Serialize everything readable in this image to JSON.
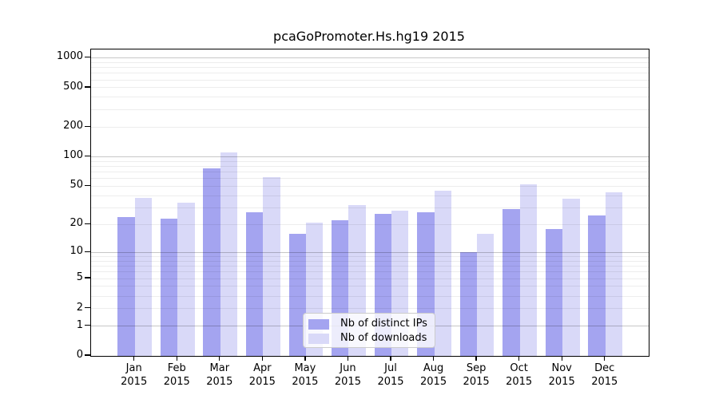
{
  "title": "pcaGoPromoter.Hs.hg19 2015",
  "chart_data": {
    "type": "bar",
    "title": "pcaGoPromoter.Hs.hg19 2015",
    "x_categories": [
      "Jan",
      "Feb",
      "Mar",
      "Apr",
      "May",
      "Jun",
      "Jul",
      "Aug",
      "Sep",
      "Oct",
      "Nov",
      "Dec"
    ],
    "x_year": "2015",
    "series": [
      {
        "name": "Nb of distinct IPs",
        "color": "#a4a4f0",
        "values": [
          24,
          23,
          76,
          27,
          16,
          22,
          26,
          27,
          10,
          29,
          18,
          25
        ]
      },
      {
        "name": "Nb of downloads",
        "color": "#d9d9f8",
        "values": [
          38,
          34,
          111,
          62,
          21,
          32,
          28,
          45,
          16,
          52,
          37,
          43
        ]
      }
    ],
    "y_ticks": [
      0,
      1,
      2,
      5,
      10,
      20,
      50,
      100,
      200,
      500,
      1000
    ],
    "y_scale": "log1p",
    "ylim": [
      0,
      1200
    ],
    "grid": "on",
    "legend_position": "lower-center"
  },
  "colors": {
    "grid_major": "rgba(0,0,0,0.22)",
    "grid_minor": "rgba(0,0,0,0.07)",
    "spine": "#000000",
    "legend_border": "#cccccc"
  }
}
